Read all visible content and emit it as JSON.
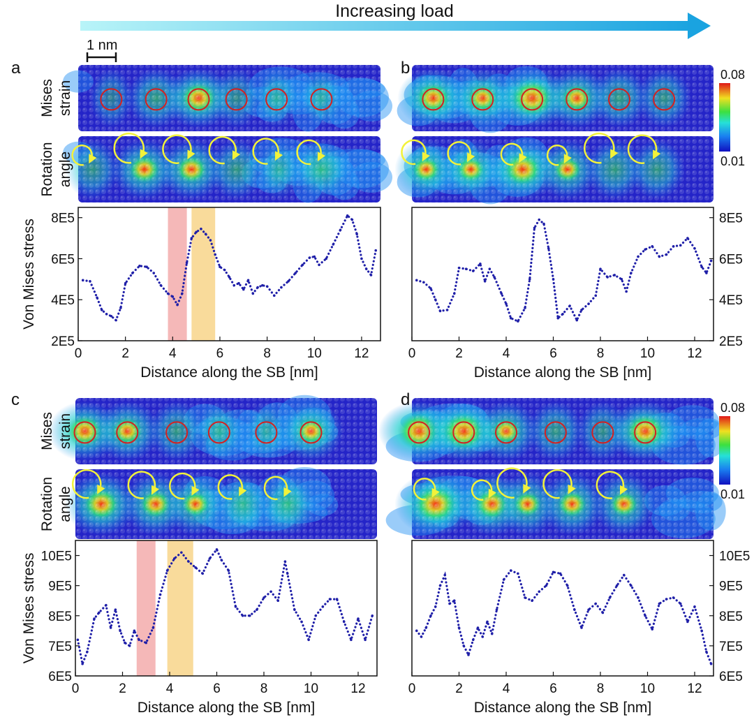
{
  "header": {
    "title": "Increasing load",
    "scalebar_label": "1 nm"
  },
  "colors": {
    "arrow_start": "#b8f4f8",
    "arrow_end": "#1aa3e0",
    "series": "#1f1fa8",
    "strain_circle": "#d42020",
    "rotation_arrow": "#f2f23a",
    "red_band": "#f2a0a0",
    "orange_band": "#f7cf7a",
    "map_low": "#1a1ab8",
    "map_high": "#e01818"
  },
  "colorbar": {
    "max_label": "0.08",
    "min_label": "0.01"
  },
  "map_labels": {
    "strain_line1": "Mises",
    "strain_line2": "strain",
    "rotation_line1": "Rotation",
    "rotation_line2": "angle"
  },
  "panels": [
    {
      "letter": "a",
      "strain_circles": [
        1.4,
        3.3,
        5.1,
        6.7,
        8.4,
        10.3
      ],
      "strain_hot": [
        0.05,
        0.4,
        0.75,
        0.2,
        0.1,
        0.05
      ],
      "rotation_arrows": [
        0.6,
        2.8,
        4.8,
        6.7,
        8.5,
        10.3
      ],
      "rotation_hot": [
        0.3,
        0.6,
        0.6,
        0.35,
        0.1,
        0.4
      ]
    },
    {
      "letter": "b",
      "strain_circles": [
        0.9,
        3.0,
        5.1,
        7.0,
        8.8,
        10.7
      ],
      "strain_hot": [
        0.7,
        0.6,
        0.95,
        0.6,
        0.4,
        0.3
      ],
      "rotation_arrows": [
        0.6,
        2.5,
        4.7,
        6.6,
        8.6,
        10.4
      ],
      "rotation_hot": [
        0.5,
        0.5,
        0.8,
        0.5,
        0.4,
        0.35
      ]
    },
    {
      "letter": "c",
      "strain_circles": [
        0.4,
        2.2,
        4.3,
        6.1,
        8.1,
        10.0
      ],
      "strain_hot": [
        0.75,
        0.6,
        0.35,
        0.2,
        0.05,
        0.55
      ],
      "rotation_arrows": [
        1.1,
        3.4,
        5.1,
        7.1,
        9.0
      ],
      "rotation_hot": [
        0.75,
        0.6,
        0.5,
        0.3,
        0.4
      ]
    },
    {
      "letter": "d",
      "strain_circles": [
        0.3,
        2.2,
        4.0,
        6.1,
        8.1,
        9.9
      ],
      "strain_hot": [
        0.95,
        0.95,
        0.55,
        0.35,
        0.25,
        0.85
      ],
      "rotation_arrows": [
        1.0,
        3.4,
        4.9,
        6.8,
        9.0
      ],
      "rotation_hot": [
        0.95,
        0.7,
        0.5,
        0.55,
        0.5
      ]
    }
  ],
  "chart_data": [
    {
      "panel": "a",
      "type": "line",
      "xlabel": "Distance along the SB [nm]",
      "ylabel": "Von Mises stress",
      "xlim": [
        0,
        12.8
      ],
      "ylim": [
        200000,
        850000
      ],
      "xticks": [
        0,
        2,
        4,
        6,
        8,
        10,
        12
      ],
      "xtick_labels": [
        "0",
        "2",
        "4",
        "6",
        "8",
        "10",
        "12"
      ],
      "yticks": [
        200000,
        400000,
        600000,
        800000
      ],
      "ytick_labels": [
        "2E5",
        "4E5",
        "6E5",
        "8E5"
      ],
      "y_axis_side": "left",
      "highlight_bands": [
        {
          "x0": 3.8,
          "x1": 4.6,
          "color": "red"
        },
        {
          "x0": 4.8,
          "x1": 5.8,
          "color": "orange"
        }
      ],
      "series": [
        {
          "x": [
            0.2,
            0.5,
            0.8,
            1.0,
            1.2,
            1.4,
            1.6,
            1.8,
            2.0,
            2.3,
            2.6,
            2.9,
            3.2,
            3.5,
            3.8,
            4.0,
            4.2,
            4.4,
            4.6,
            4.8,
            5.0,
            5.2,
            5.4,
            5.6,
            5.8,
            6.0,
            6.2,
            6.4,
            6.6,
            6.8,
            7.0,
            7.2,
            7.4,
            7.6,
            7.8,
            8.0,
            8.3,
            8.6,
            8.9,
            9.2,
            9.5,
            9.8,
            10.0,
            10.2,
            10.5,
            10.8,
            11.1,
            11.4,
            11.6,
            11.8,
            12.0,
            12.2,
            12.4,
            12.6
          ],
          "y": [
            495000,
            490000,
            410000,
            350000,
            330000,
            320000,
            300000,
            360000,
            480000,
            530000,
            565000,
            560000,
            530000,
            470000,
            430000,
            415000,
            375000,
            430000,
            580000,
            700000,
            730000,
            745000,
            720000,
            690000,
            620000,
            560000,
            545000,
            510000,
            470000,
            480000,
            450000,
            495000,
            430000,
            460000,
            470000,
            465000,
            420000,
            460000,
            490000,
            530000,
            570000,
            605000,
            610000,
            570000,
            600000,
            670000,
            740000,
            810000,
            790000,
            720000,
            600000,
            550000,
            520000,
            640000
          ]
        }
      ]
    },
    {
      "panel": "b",
      "type": "line",
      "xlabel": "Distance along the SB [nm]",
      "ylabel": "",
      "xlim": [
        0,
        12.8
      ],
      "ylim": [
        200000,
        850000
      ],
      "xticks": [
        0,
        2,
        4,
        6,
        8,
        10,
        12
      ],
      "xtick_labels": [
        "0",
        "2",
        "4",
        "6",
        "8",
        "10",
        "12"
      ],
      "yticks": [
        200000,
        400000,
        600000,
        800000
      ],
      "ytick_labels": [
        "2E5",
        "4E5",
        "6E5",
        "8E5"
      ],
      "y_axis_side": "right",
      "highlight_bands": [],
      "series": [
        {
          "x": [
            0.2,
            0.5,
            0.8,
            1.0,
            1.2,
            1.5,
            1.8,
            2.0,
            2.3,
            2.6,
            2.9,
            3.1,
            3.3,
            3.5,
            3.8,
            4.0,
            4.2,
            4.5,
            4.8,
            5.0,
            5.2,
            5.4,
            5.6,
            5.8,
            6.0,
            6.2,
            6.4,
            6.7,
            7.0,
            7.2,
            7.5,
            7.8,
            8.0,
            8.3,
            8.6,
            8.9,
            9.1,
            9.3,
            9.6,
            9.9,
            10.2,
            10.5,
            10.8,
            11.1,
            11.4,
            11.7,
            12.0,
            12.3,
            12.5,
            12.7
          ],
          "y": [
            495000,
            485000,
            455000,
            400000,
            345000,
            350000,
            430000,
            555000,
            550000,
            540000,
            575000,
            490000,
            550000,
            510000,
            430000,
            380000,
            310000,
            295000,
            360000,
            500000,
            750000,
            790000,
            770000,
            650000,
            500000,
            310000,
            330000,
            370000,
            300000,
            350000,
            380000,
            420000,
            550000,
            510000,
            520000,
            500000,
            440000,
            530000,
            610000,
            645000,
            660000,
            610000,
            620000,
            660000,
            665000,
            700000,
            650000,
            560000,
            530000,
            590000
          ]
        }
      ]
    },
    {
      "panel": "c",
      "type": "line",
      "xlabel": "Distance along the SB [nm]",
      "ylabel": "Von Mises stress",
      "xlim": [
        0,
        12.8
      ],
      "ylim": [
        600000,
        1050000
      ],
      "xticks": [
        0,
        2,
        4,
        6,
        8,
        10,
        12
      ],
      "xtick_labels": [
        "0",
        "2",
        "4",
        "6",
        "8",
        "10",
        "12"
      ],
      "yticks": [
        600000,
        700000,
        800000,
        900000,
        1000000
      ],
      "ytick_labels": [
        "6E5",
        "7E5",
        "8E5",
        "9E5",
        "10E5"
      ],
      "y_axis_side": "left",
      "highlight_bands": [
        {
          "x0": 2.6,
          "x1": 3.4,
          "color": "red"
        },
        {
          "x0": 3.9,
          "x1": 5.0,
          "color": "orange"
        }
      ],
      "series": [
        {
          "x": [
            0.1,
            0.3,
            0.5,
            0.8,
            1.0,
            1.3,
            1.5,
            1.7,
            1.9,
            2.1,
            2.3,
            2.5,
            2.7,
            3.0,
            3.3,
            3.6,
            3.9,
            4.2,
            4.5,
            4.8,
            5.1,
            5.4,
            5.7,
            6.0,
            6.2,
            6.5,
            6.8,
            7.1,
            7.4,
            7.7,
            8.0,
            8.3,
            8.6,
            8.9,
            9.0,
            9.3,
            9.6,
            9.9,
            10.2,
            10.5,
            10.8,
            11.1,
            11.4,
            11.7,
            12.0,
            12.3,
            12.6
          ],
          "y": [
            720000,
            640000,
            680000,
            790000,
            810000,
            835000,
            760000,
            820000,
            750000,
            710000,
            700000,
            750000,
            720000,
            710000,
            760000,
            870000,
            950000,
            990000,
            1010000,
            980000,
            960000,
            940000,
            990000,
            1020000,
            985000,
            950000,
            830000,
            800000,
            800000,
            820000,
            860000,
            880000,
            850000,
            980000,
            940000,
            820000,
            780000,
            720000,
            800000,
            830000,
            855000,
            855000,
            780000,
            720000,
            790000,
            720000,
            800000
          ]
        }
      ]
    },
    {
      "panel": "d",
      "type": "line",
      "xlabel": "Distance along the SB [nm]",
      "ylabel": "",
      "xlim": [
        0,
        12.8
      ],
      "ylim": [
        600000,
        1050000
      ],
      "xticks": [
        0,
        2,
        4,
        6,
        8,
        10,
        12
      ],
      "xtick_labels": [
        "0",
        "2",
        "4",
        "6",
        "8",
        "10",
        "12"
      ],
      "yticks": [
        600000,
        700000,
        800000,
        900000,
        1000000
      ],
      "ytick_labels": [
        "6E5",
        "7E5",
        "8E5",
        "9E5",
        "10E5"
      ],
      "y_axis_side": "right",
      "highlight_bands": [],
      "series": [
        {
          "x": [
            0.2,
            0.4,
            0.6,
            0.8,
            1.0,
            1.2,
            1.4,
            1.6,
            1.8,
            2.0,
            2.2,
            2.4,
            2.6,
            2.8,
            3.0,
            3.2,
            3.4,
            3.6,
            3.9,
            4.2,
            4.5,
            4.8,
            5.1,
            5.4,
            5.7,
            6.0,
            6.3,
            6.6,
            6.9,
            7.2,
            7.5,
            7.8,
            8.1,
            8.4,
            8.7,
            9.0,
            9.3,
            9.6,
            9.9,
            10.2,
            10.5,
            10.8,
            11.1,
            11.4,
            11.7,
            12.0,
            12.3,
            12.5,
            12.7
          ],
          "y": [
            750000,
            730000,
            760000,
            800000,
            830000,
            900000,
            935000,
            840000,
            850000,
            760000,
            700000,
            670000,
            720000,
            760000,
            730000,
            780000,
            740000,
            820000,
            920000,
            950000,
            940000,
            860000,
            850000,
            880000,
            900000,
            945000,
            940000,
            900000,
            820000,
            760000,
            820000,
            840000,
            810000,
            860000,
            900000,
            935000,
            900000,
            860000,
            800000,
            755000,
            840000,
            855000,
            860000,
            840000,
            780000,
            830000,
            750000,
            680000,
            640000
          ]
        }
      ]
    }
  ]
}
